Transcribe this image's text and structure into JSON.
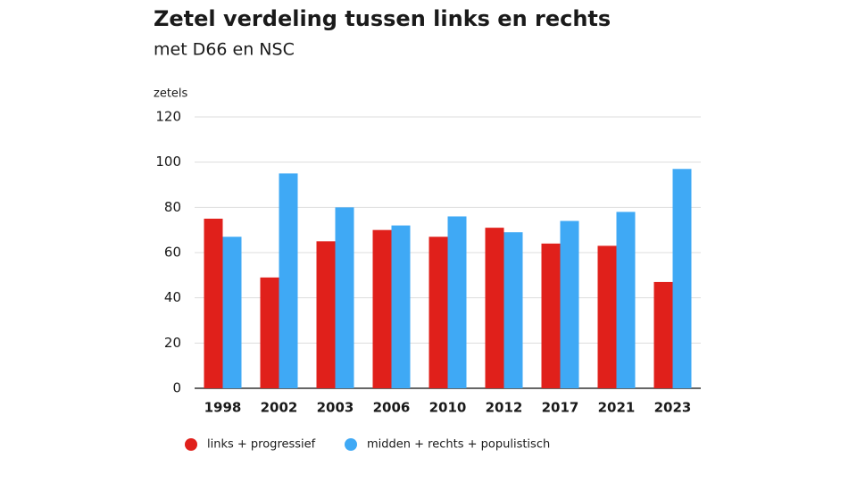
{
  "chart_data": {
    "type": "bar",
    "title": "Zetel verdeling tussen links en rechts",
    "subtitle": "met D66 en NSC",
    "y_label": "zetels",
    "categories": [
      "1998",
      "2002",
      "2003",
      "2006",
      "2010",
      "2012",
      "2017",
      "2021",
      "2023"
    ],
    "series": [
      {
        "name": "links + progressief",
        "color": "#e0201b",
        "values": [
          75,
          49,
          65,
          70,
          67,
          71,
          64,
          63,
          47
        ]
      },
      {
        "name": "midden + rechts + populistisch",
        "color": "#3fa9f5",
        "values": [
          67,
          95,
          80,
          72,
          76,
          69,
          74,
          78,
          97
        ]
      }
    ],
    "ylim": [
      0,
      120
    ],
    "yticks": [
      0,
      20,
      40,
      60,
      80,
      100,
      120
    ],
    "grid": true
  }
}
